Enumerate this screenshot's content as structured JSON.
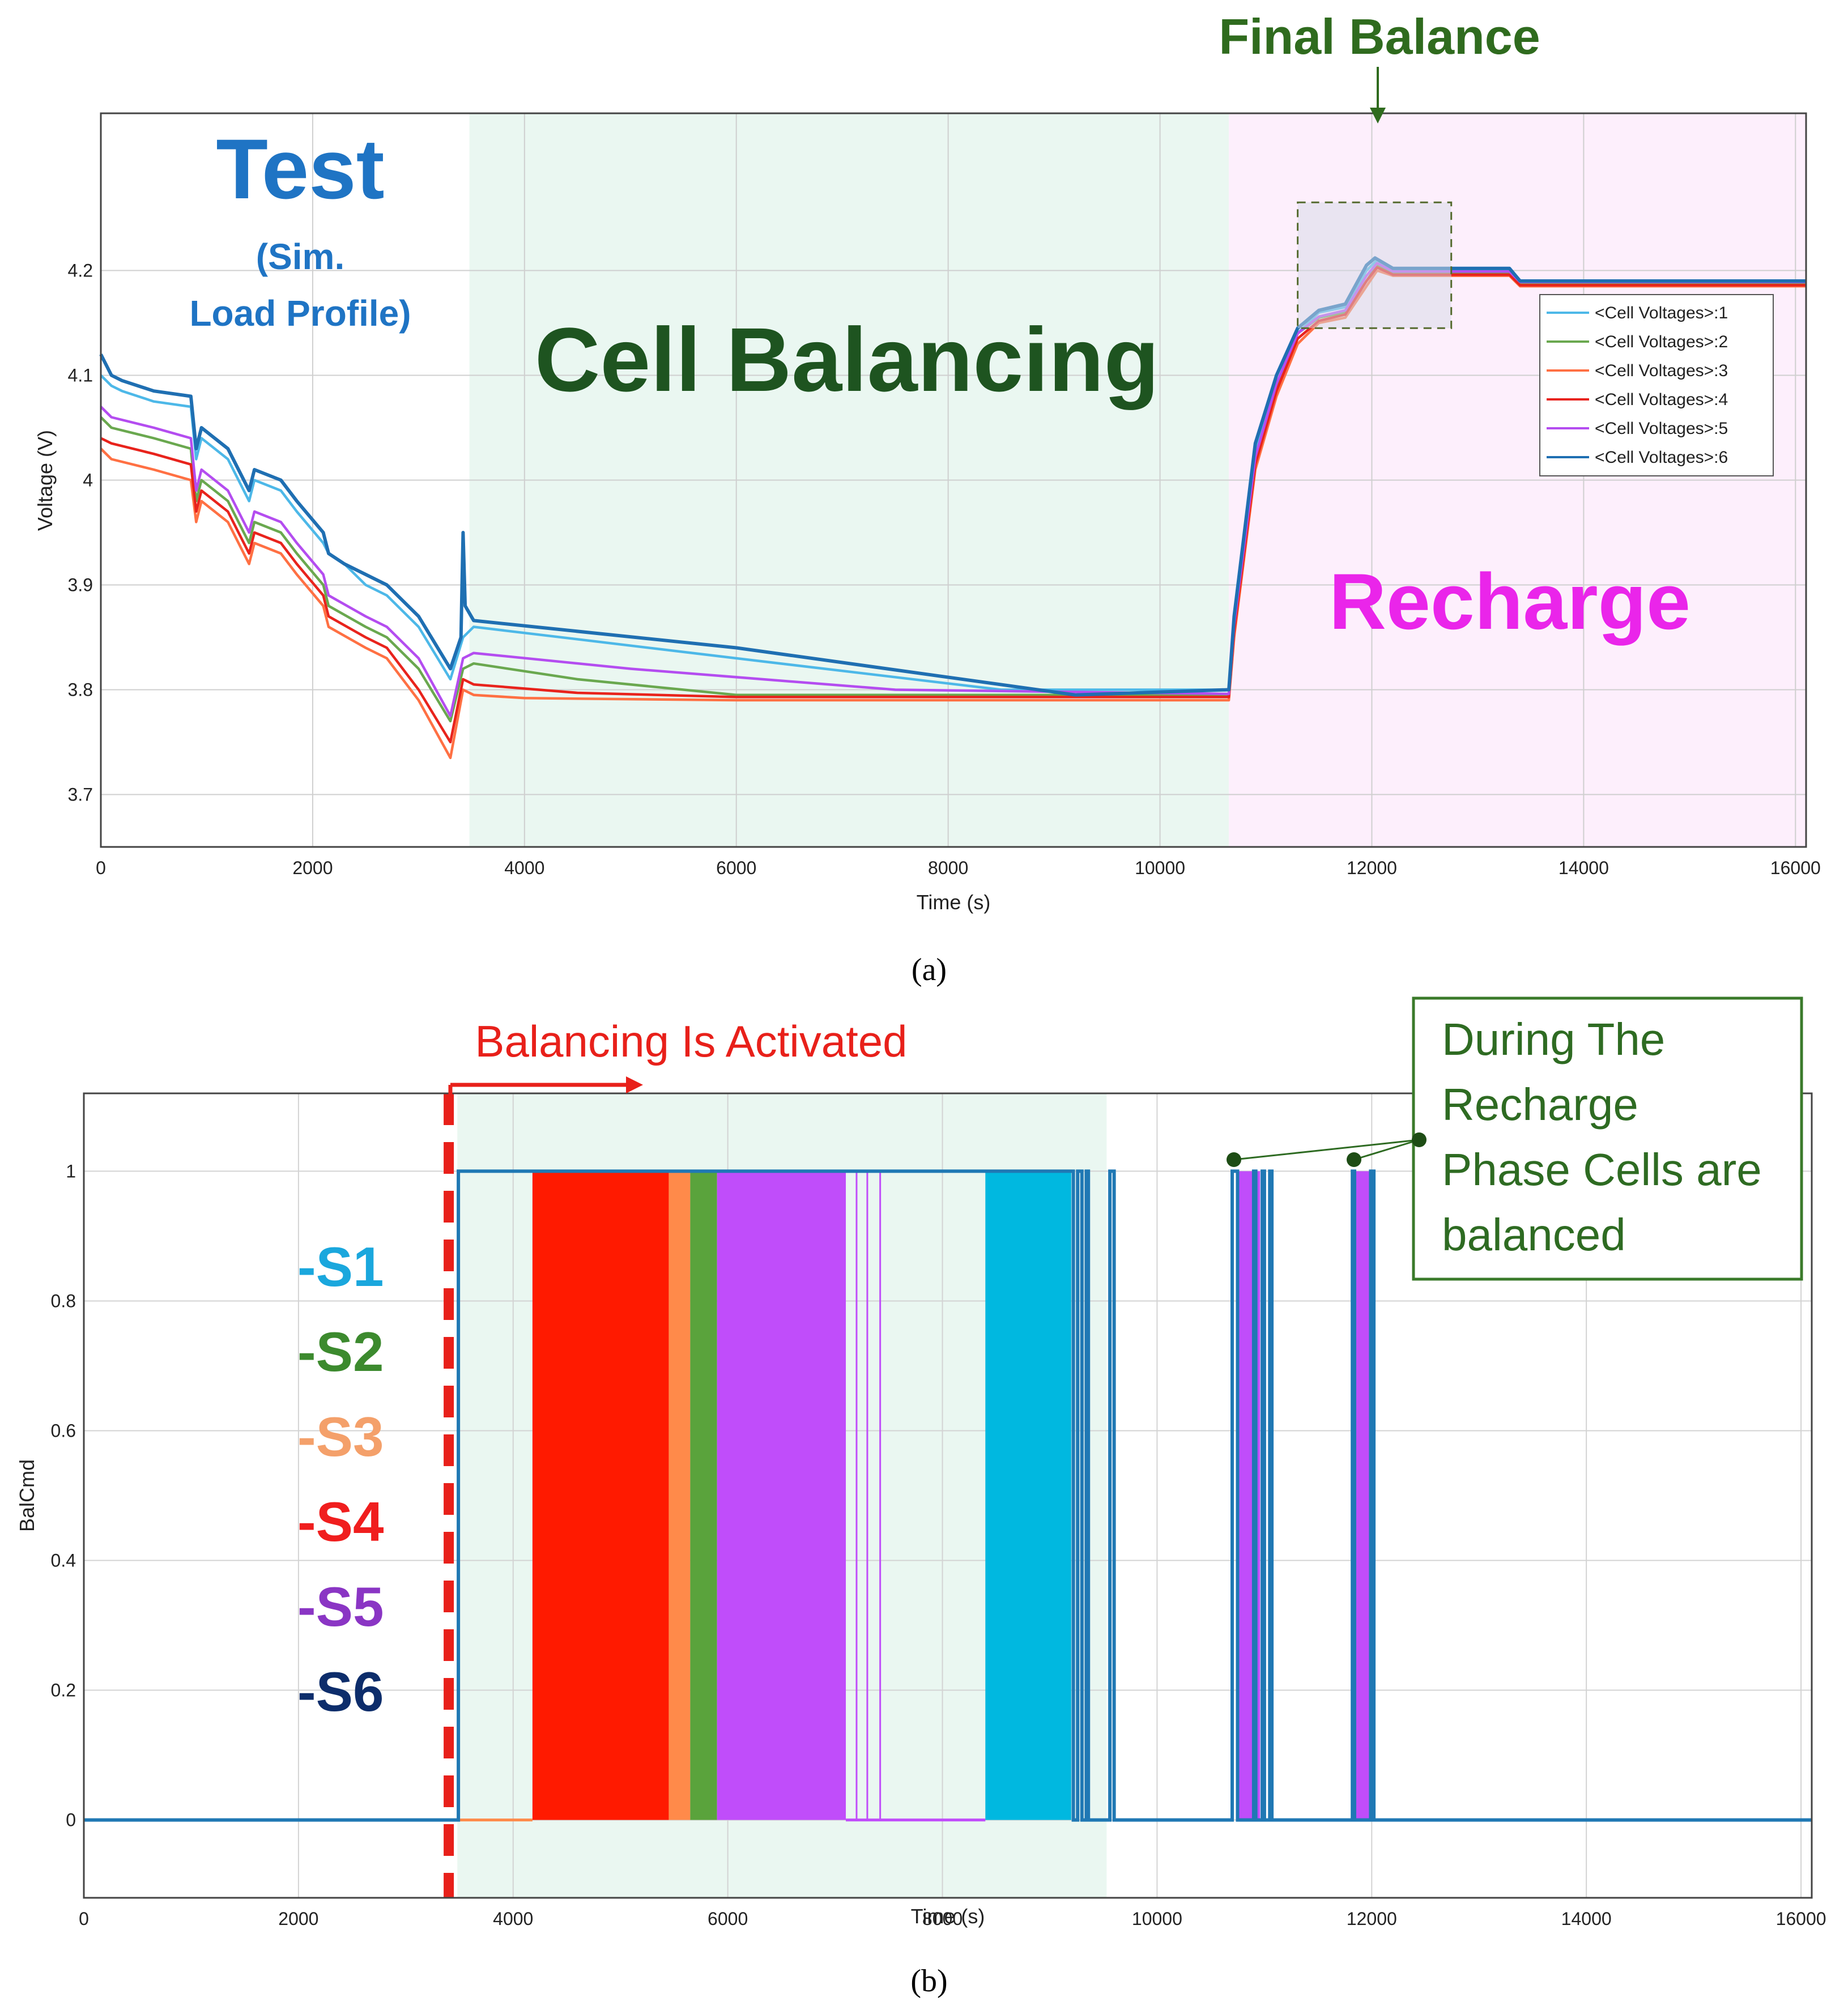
{
  "chart_data": [
    {
      "panel": "a",
      "type": "line",
      "caption": "(a)",
      "xlabel": "Time (s)",
      "ylabel": "Voltage (V)",
      "xlim": [
        0,
        16100
      ],
      "ylim": [
        3.65,
        4.35
      ],
      "xticks": [
        0,
        2000,
        4000,
        6000,
        8000,
        10000,
        12000,
        14000,
        16000
      ],
      "yticks": [
        3.7,
        3.8,
        3.9,
        4,
        4.1,
        4.2
      ],
      "ytick_labels": [
        "3.7",
        "3.8",
        "3.9",
        "4",
        "4.1",
        "4.2"
      ],
      "grid": true,
      "phases": [
        {
          "name": "Test",
          "x0": 0,
          "x1": 3480,
          "color": "#ffffff"
        },
        {
          "name": "Cell Balancing",
          "x0": 3480,
          "x1": 10650,
          "color": "#eaf7f1"
        },
        {
          "name": "Recharge",
          "x0": 10650,
          "x1": 16100,
          "color": "#fdeffc"
        }
      ],
      "annotations": {
        "test_title": "Test",
        "test_sub1": "(Sim.",
        "test_sub2": "Load Profile)",
        "balancing": "Cell Balancing",
        "recharge": "Recharge",
        "final_balance": "Final Balance",
        "final_box": {
          "x0": 11300,
          "x1": 12750,
          "y0": 4.145,
          "y1": 4.265
        }
      },
      "legend_position": "right",
      "series": [
        {
          "name": "<Cell Voltages>:1",
          "color": "#4db8e8",
          "points": [
            [
              0,
              4.1
            ],
            [
              100,
              4.09
            ],
            [
              200,
              4.085
            ],
            [
              500,
              4.075
            ],
            [
              850,
              4.07
            ],
            [
              900,
              4.02
            ],
            [
              950,
              4.04
            ],
            [
              1200,
              4.02
            ],
            [
              1400,
              3.98
            ],
            [
              1450,
              4.0
            ],
            [
              1700,
              3.99
            ],
            [
              1850,
              3.97
            ],
            [
              2100,
              3.94
            ],
            [
              2150,
              3.93
            ],
            [
              2300,
              3.92
            ],
            [
              2500,
              3.9
            ],
            [
              2700,
              3.89
            ],
            [
              3000,
              3.86
            ],
            [
              3300,
              3.81
            ],
            [
              3420,
              3.85
            ],
            [
              3520,
              3.86
            ],
            [
              6000,
              3.83
            ],
            [
              8500,
              3.8
            ],
            [
              10650,
              3.8
            ],
            [
              10700,
              3.87
            ],
            [
              10900,
              4.03
            ],
            [
              11100,
              4.1
            ],
            [
              11300,
              4.14
            ],
            [
              11500,
              4.16
            ],
            [
              11750,
              4.165
            ],
            [
              11950,
              4.2
            ],
            [
              12050,
              4.21
            ],
            [
              12200,
              4.2
            ],
            [
              13300,
              4.2
            ],
            [
              13400,
              4.19
            ],
            [
              16100,
              4.19
            ]
          ]
        },
        {
          "name": "<Cell Voltages>:2",
          "color": "#6aa84f",
          "points": [
            [
              0,
              4.06
            ],
            [
              100,
              4.05
            ],
            [
              500,
              4.04
            ],
            [
              850,
              4.03
            ],
            [
              900,
              3.98
            ],
            [
              950,
              4.0
            ],
            [
              1200,
              3.98
            ],
            [
              1400,
              3.94
            ],
            [
              1450,
              3.96
            ],
            [
              1700,
              3.95
            ],
            [
              1850,
              3.93
            ],
            [
              2100,
              3.9
            ],
            [
              2150,
              3.88
            ],
            [
              2500,
              3.86
            ],
            [
              2700,
              3.85
            ],
            [
              3000,
              3.82
            ],
            [
              3300,
              3.77
            ],
            [
              3420,
              3.82
            ],
            [
              3520,
              3.825
            ],
            [
              4500,
              3.81
            ],
            [
              6000,
              3.795
            ],
            [
              10650,
              3.795
            ],
            [
              10700,
              3.86
            ],
            [
              10900,
              4.02
            ],
            [
              11100,
              4.09
            ],
            [
              11300,
              4.14
            ],
            [
              11500,
              4.155
            ],
            [
              11750,
              4.16
            ],
            [
              11950,
              4.19
            ],
            [
              12050,
              4.205
            ],
            [
              12200,
              4.198
            ],
            [
              13300,
              4.198
            ],
            [
              13400,
              4.188
            ],
            [
              16100,
              4.188
            ]
          ]
        },
        {
          "name": "<Cell Voltages>:3",
          "color": "#ff7043",
          "points": [
            [
              0,
              4.03
            ],
            [
              100,
              4.02
            ],
            [
              500,
              4.01
            ],
            [
              850,
              4.0
            ],
            [
              900,
              3.96
            ],
            [
              950,
              3.98
            ],
            [
              1200,
              3.96
            ],
            [
              1400,
              3.92
            ],
            [
              1450,
              3.94
            ],
            [
              1700,
              3.93
            ],
            [
              1850,
              3.91
            ],
            [
              2100,
              3.88
            ],
            [
              2150,
              3.86
            ],
            [
              2500,
              3.84
            ],
            [
              2700,
              3.83
            ],
            [
              3000,
              3.79
            ],
            [
              3300,
              3.735
            ],
            [
              3420,
              3.8
            ],
            [
              3520,
              3.795
            ],
            [
              4000,
              3.792
            ],
            [
              6000,
              3.79
            ],
            [
              10650,
              3.79
            ],
            [
              10700,
              3.85
            ],
            [
              10900,
              4.01
            ],
            [
              11100,
              4.08
            ],
            [
              11300,
              4.13
            ],
            [
              11500,
              4.15
            ],
            [
              11750,
              4.155
            ],
            [
              11950,
              4.185
            ],
            [
              12050,
              4.2
            ],
            [
              12200,
              4.195
            ],
            [
              13300,
              4.195
            ],
            [
              13400,
              4.185
            ],
            [
              16100,
              4.185
            ]
          ]
        },
        {
          "name": "<Cell Voltages>:4",
          "color": "#e8231c",
          "points": [
            [
              0,
              4.04
            ],
            [
              100,
              4.035
            ],
            [
              500,
              4.025
            ],
            [
              850,
              4.015
            ],
            [
              900,
              3.97
            ],
            [
              950,
              3.99
            ],
            [
              1200,
              3.97
            ],
            [
              1400,
              3.93
            ],
            [
              1450,
              3.95
            ],
            [
              1700,
              3.94
            ],
            [
              1850,
              3.92
            ],
            [
              2100,
              3.89
            ],
            [
              2150,
              3.87
            ],
            [
              2500,
              3.85
            ],
            [
              2700,
              3.84
            ],
            [
              3000,
              3.8
            ],
            [
              3300,
              3.75
            ],
            [
              3420,
              3.81
            ],
            [
              3520,
              3.805
            ],
            [
              4500,
              3.797
            ],
            [
              6000,
              3.793
            ],
            [
              10650,
              3.793
            ],
            [
              10700,
              3.855
            ],
            [
              10900,
              4.015
            ],
            [
              11100,
              4.085
            ],
            [
              11300,
              4.135
            ],
            [
              11500,
              4.152
            ],
            [
              11750,
              4.158
            ],
            [
              11950,
              4.19
            ],
            [
              12050,
              4.203
            ],
            [
              12200,
              4.196
            ],
            [
              13300,
              4.196
            ],
            [
              13400,
              4.186
            ],
            [
              16100,
              4.186
            ]
          ]
        },
        {
          "name": "<Cell Voltages>:5",
          "color": "#b44df0",
          "points": [
            [
              0,
              4.07
            ],
            [
              100,
              4.06
            ],
            [
              500,
              4.05
            ],
            [
              850,
              4.04
            ],
            [
              900,
              3.99
            ],
            [
              950,
              4.01
            ],
            [
              1200,
              3.99
            ],
            [
              1400,
              3.95
            ],
            [
              1450,
              3.97
            ],
            [
              1700,
              3.96
            ],
            [
              1850,
              3.94
            ],
            [
              2100,
              3.91
            ],
            [
              2150,
              3.89
            ],
            [
              2500,
              3.87
            ],
            [
              2700,
              3.86
            ],
            [
              3000,
              3.83
            ],
            [
              3300,
              3.775
            ],
            [
              3420,
              3.83
            ],
            [
              3520,
              3.835
            ],
            [
              5000,
              3.82
            ],
            [
              7500,
              3.8
            ],
            [
              10650,
              3.796
            ],
            [
              10700,
              3.862
            ],
            [
              10900,
              4.022
            ],
            [
              11100,
              4.092
            ],
            [
              11300,
              4.14
            ],
            [
              11500,
              4.156
            ],
            [
              11750,
              4.162
            ],
            [
              11950,
              4.195
            ],
            [
              12050,
              4.207
            ],
            [
              12200,
              4.199
            ],
            [
              13300,
              4.199
            ],
            [
              13400,
              4.189
            ],
            [
              16100,
              4.189
            ]
          ]
        },
        {
          "name": "<Cell Voltages>:6",
          "color": "#1f6fb2",
          "points": [
            [
              0,
              4.12
            ],
            [
              100,
              4.1
            ],
            [
              200,
              4.095
            ],
            [
              500,
              4.085
            ],
            [
              850,
              4.08
            ],
            [
              900,
              4.03
            ],
            [
              950,
              4.05
            ],
            [
              1200,
              4.03
            ],
            [
              1400,
              3.99
            ],
            [
              1450,
              4.01
            ],
            [
              1700,
              4.0
            ],
            [
              1850,
              3.98
            ],
            [
              2100,
              3.95
            ],
            [
              2150,
              3.93
            ],
            [
              2300,
              3.92
            ],
            [
              2500,
              3.91
            ],
            [
              2700,
              3.9
            ],
            [
              3000,
              3.87
            ],
            [
              3300,
              3.82
            ],
            [
              3400,
              3.85
            ],
            [
              3420,
              3.95
            ],
            [
              3440,
              3.88
            ],
            [
              3520,
              3.866
            ],
            [
              6000,
              3.84
            ],
            [
              9200,
              3.795
            ],
            [
              10650,
              3.8
            ],
            [
              10700,
              3.87
            ],
            [
              10900,
              4.035
            ],
            [
              11100,
              4.1
            ],
            [
              11300,
              4.145
            ],
            [
              11500,
              4.162
            ],
            [
              11750,
              4.168
            ],
            [
              11950,
              4.205
            ],
            [
              12030,
              4.212
            ],
            [
              12200,
              4.202
            ],
            [
              13300,
              4.202
            ],
            [
              13400,
              4.19
            ],
            [
              16100,
              4.19
            ]
          ]
        }
      ]
    },
    {
      "panel": "b",
      "type": "line",
      "caption": "(b)",
      "xlabel": "Time (s)",
      "ylabel": "BalCmd",
      "xlim": [
        0,
        16100
      ],
      "ylim": [
        -0.12,
        1.12
      ],
      "xticks": [
        0,
        2000,
        4000,
        6000,
        8000,
        10000,
        12000,
        14000,
        16000
      ],
      "yticks": [
        0,
        0.2,
        0.4,
        0.6,
        0.8,
        1
      ],
      "ytick_labels": [
        "0",
        "0.2",
        "0.4",
        "0.6",
        "0.8",
        "1"
      ],
      "grid": true,
      "phases": [
        {
          "name": "Cell Balancing",
          "x0": 3480,
          "x1": 9530,
          "color": "#eaf7f1"
        }
      ],
      "activation_time": 3400,
      "annotations": {
        "activated": "Balancing Is Activated",
        "note_line1": "During The",
        "note_line2": "Recharge",
        "note_line3": "Phase Cells are",
        "note_line4": "balanced"
      },
      "legend_labels": [
        {
          "label": "-S1",
          "color": "#1aa7dd"
        },
        {
          "label": "-S2",
          "color": "#3c8a2e"
        },
        {
          "label": "-S3",
          "color": "#f4a06a"
        },
        {
          "label": "-S4",
          "color": "#f01e1e"
        },
        {
          "label": "-S5",
          "color": "#8a35c4"
        },
        {
          "label": "-S6",
          "color": "#0d2d6b"
        }
      ],
      "active_intervals": [
        {
          "name": "S4",
          "color": "#ff1a00",
          "t0": 4180,
          "t1": 5450
        },
        {
          "name": "S3",
          "color": "#ff8a4a",
          "t0": 5450,
          "t1": 5650
        },
        {
          "name": "S2",
          "color": "#5aa33c",
          "t0": 5650,
          "t1": 5900
        },
        {
          "name": "S5",
          "color": "#c04dfa",
          "t0": 5900,
          "t1": 7100
        },
        {
          "name": "S1",
          "color": "#00b8e0",
          "t0": 8400,
          "t1": 9200
        },
        {
          "name": "S5",
          "color": "#c04dfa",
          "t0": 10740,
          "t1": 10960
        },
        {
          "name": "S5",
          "color": "#c04dfa",
          "t0": 11830,
          "t1": 11990
        }
      ],
      "S6_pulses": [
        [
          3490,
          9220
        ],
        [
          9260,
          9300
        ],
        [
          9340,
          9360
        ],
        [
          9560,
          9600
        ],
        [
          10700,
          10750
        ],
        [
          10900,
          10920
        ],
        [
          10980,
          11000
        ],
        [
          11050,
          11070
        ],
        [
          11820,
          11840
        ],
        [
          11990,
          12020
        ]
      ]
    }
  ]
}
